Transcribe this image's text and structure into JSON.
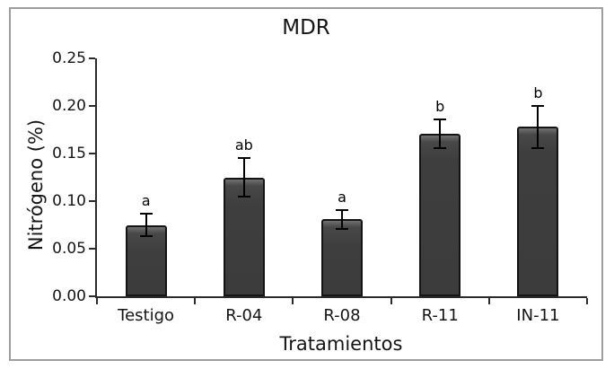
{
  "chart_data": {
    "type": "bar",
    "title": "MDR",
    "xlabel": "Tratamientos",
    "ylabel": "Nitrógeno (%)",
    "categories": [
      "Testigo",
      "R-04",
      "R-08",
      "R-11",
      "IN-11"
    ],
    "values": [
      0.075,
      0.125,
      0.081,
      0.171,
      0.178
    ],
    "errors": [
      0.012,
      0.02,
      0.01,
      0.015,
      0.022
    ],
    "sig_letters": [
      "a",
      "ab",
      "a",
      "b",
      "b"
    ],
    "ylim": [
      0,
      0.25
    ],
    "ytick_step": 0.05,
    "ytick_labels": [
      "0.00",
      "0.05",
      "0.10",
      "0.15",
      "0.20",
      "0.25"
    ],
    "grid": "off",
    "legend": "none",
    "colors": {
      "bar_fill": "#3e3e3e",
      "bar_border": "#141414",
      "error_bar": "#000000",
      "axis": "#2b2b2b",
      "text": "#141414",
      "frame_border": "#9e9e9e",
      "background": "#ffffff"
    }
  }
}
